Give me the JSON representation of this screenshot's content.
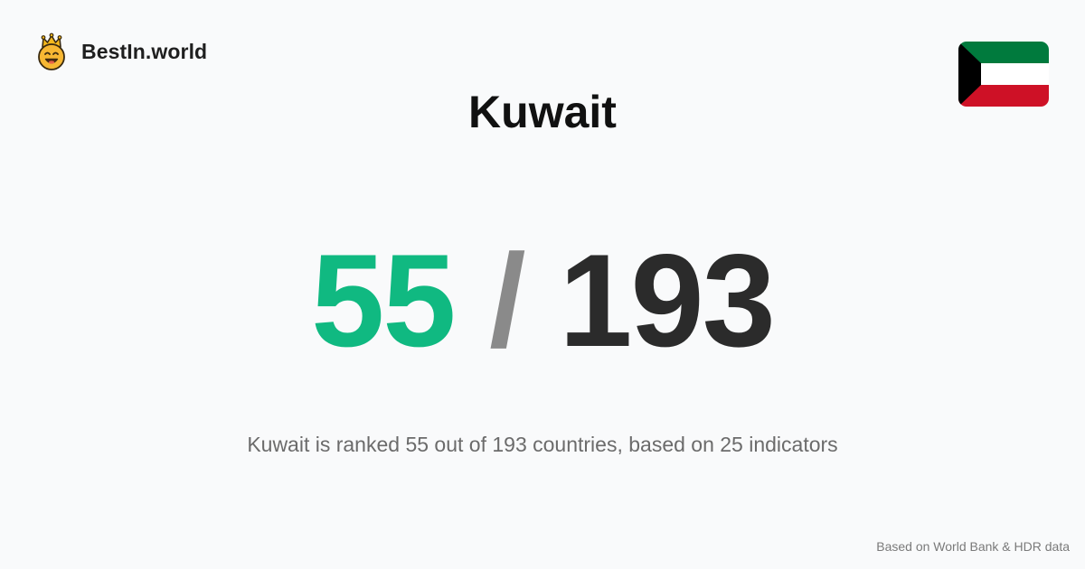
{
  "brand": {
    "name": "BestIn.world",
    "logo_icon": "crown-smiley-icon"
  },
  "country": {
    "name": "Kuwait",
    "flag_icon": "kuwait-flag-icon",
    "flag_colors": {
      "green": "#007a3d",
      "white": "#ffffff",
      "red": "#ce1126",
      "black": "#000000"
    }
  },
  "ranking": {
    "rank": "55",
    "separator": "/",
    "total": "193",
    "colors": {
      "rank": "#10b981",
      "separator": "#8a8a8a",
      "total": "#2b2b2b"
    }
  },
  "summary": "Kuwait is ranked 55 out of 193 countries, based on 25 indicators",
  "footer": {
    "source_note": "Based on World Bank & HDR data"
  }
}
